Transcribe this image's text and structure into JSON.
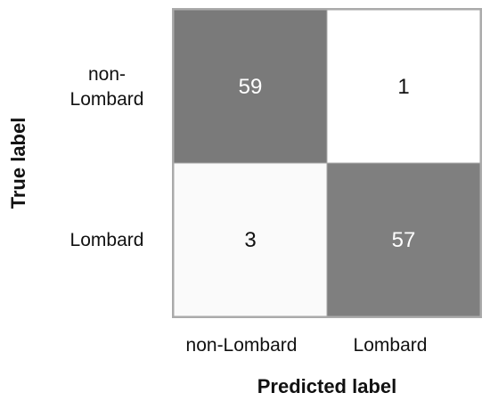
{
  "chart_data": {
    "type": "heatmap",
    "title": "",
    "xlabel": "Predicted label",
    "ylabel": "True label",
    "x_categories": [
      "non-Lombard",
      "Lombard"
    ],
    "y_categories": [
      [
        "non-",
        "Lombard"
      ],
      [
        "Lombard"
      ]
    ],
    "values": [
      [
        59,
        1
      ],
      [
        3,
        57
      ]
    ],
    "colors": {
      "high": "#7a7a7a",
      "low": "#ffffff",
      "high_text": "#ffffff",
      "low_text": "#111111",
      "border": "#aaaaaa"
    }
  }
}
